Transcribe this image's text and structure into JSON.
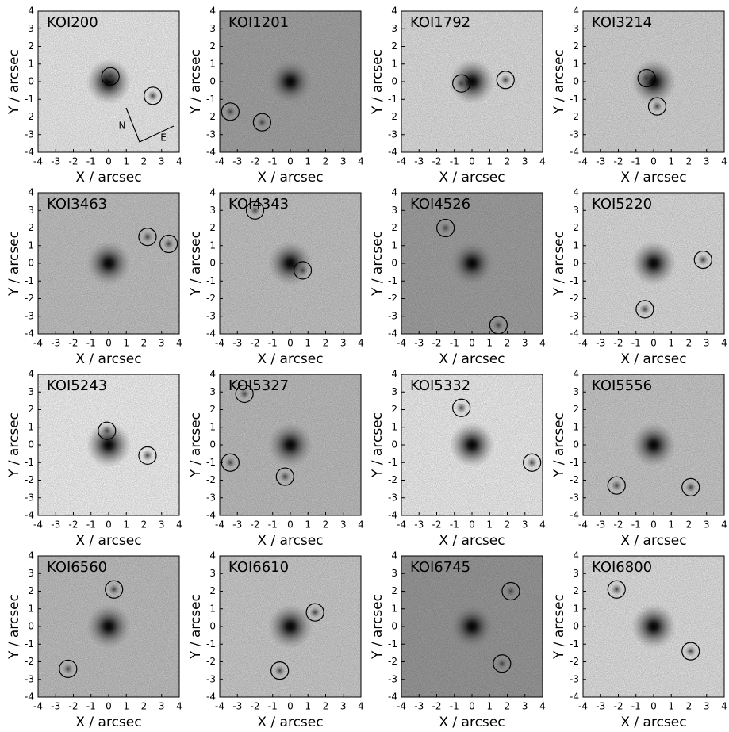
{
  "chart_data": [
    {
      "type": "image",
      "title": "KOI200",
      "xlabel": "X / arcsec",
      "ylabel": "Y / arcsec",
      "xlim": [
        -4,
        4
      ],
      "ylim": [
        -4,
        4
      ],
      "xticks": [
        -4,
        -3,
        -2,
        -1,
        0,
        1,
        2,
        3,
        4
      ],
      "yticks": [
        -4,
        -3,
        -2,
        -1,
        0,
        1,
        2,
        3,
        4
      ],
      "background": "#f4f4f4",
      "x": [
        0.1,
        2.5
      ],
      "y": [
        0.3,
        -0.8
      ],
      "annotations": [
        "N",
        "E"
      ]
    },
    {
      "type": "image",
      "title": "KOI1201",
      "xlabel": "X / arcsec",
      "ylabel": "Y / arcsec",
      "xlim": [
        -4,
        4
      ],
      "ylim": [
        -4,
        4
      ],
      "xticks": [
        -4,
        -3,
        -2,
        -1,
        0,
        1,
        2,
        3,
        4
      ],
      "yticks": [
        -4,
        -3,
        -2,
        -1,
        0,
        1,
        2,
        3,
        4
      ],
      "background": "#a9a9a9",
      "x": [
        -3.4,
        -1.6
      ],
      "y": [
        -1.7,
        -2.3
      ]
    },
    {
      "type": "image",
      "title": "KOI1792",
      "xlabel": "X / arcsec",
      "ylabel": "Y / arcsec",
      "xlim": [
        -4,
        4
      ],
      "ylim": [
        -4,
        4
      ],
      "xticks": [
        -4,
        -3,
        -2,
        -1,
        0,
        1,
        2,
        3,
        4
      ],
      "yticks": [
        -4,
        -3,
        -2,
        -1,
        0,
        1,
        2,
        3,
        4
      ],
      "background": "#e6e6e6",
      "x": [
        -0.6,
        1.9
      ],
      "y": [
        -0.1,
        0.1
      ]
    },
    {
      "type": "image",
      "title": "KOI3214",
      "xlabel": "X / arcsec",
      "ylabel": "Y / arcsec",
      "xlim": [
        -4,
        4
      ],
      "ylim": [
        -4,
        4
      ],
      "xticks": [
        -4,
        -3,
        -2,
        -1,
        0,
        1,
        2,
        3,
        4
      ],
      "yticks": [
        -4,
        -3,
        -2,
        -1,
        0,
        1,
        2,
        3,
        4
      ],
      "background": "#dcdcdc",
      "x": [
        -0.4,
        0.2
      ],
      "y": [
        0.2,
        -1.4
      ]
    },
    {
      "type": "image",
      "title": "KOI3463",
      "xlabel": "X / arcsec",
      "ylabel": "Y / arcsec",
      "xlim": [
        -4,
        4
      ],
      "ylim": [
        -4,
        4
      ],
      "xticks": [
        -4,
        -3,
        -2,
        -1,
        0,
        1,
        2,
        3,
        4
      ],
      "yticks": [
        -4,
        -3,
        -2,
        -1,
        0,
        1,
        2,
        3,
        4
      ],
      "background": "#c8c8c8",
      "x": [
        2.2,
        3.4
      ],
      "y": [
        1.5,
        1.1
      ]
    },
    {
      "type": "image",
      "title": "KOI4343",
      "xlabel": "X / arcsec",
      "ylabel": "Y / arcsec",
      "xlim": [
        -4,
        4
      ],
      "ylim": [
        -4,
        4
      ],
      "xticks": [
        -4,
        -3,
        -2,
        -1,
        0,
        1,
        2,
        3,
        4
      ],
      "yticks": [
        -4,
        -3,
        -2,
        -1,
        0,
        1,
        2,
        3,
        4
      ],
      "background": "#cbcbcb",
      "x": [
        -2.0,
        0.7
      ],
      "y": [
        3.0,
        -0.4
      ]
    },
    {
      "type": "image",
      "title": "KOI4526",
      "xlabel": "X / arcsec",
      "ylabel": "Y / arcsec",
      "xlim": [
        -4,
        4
      ],
      "ylim": [
        -4,
        4
      ],
      "xticks": [
        -4,
        -3,
        -2,
        -1,
        0,
        1,
        2,
        3,
        4
      ],
      "yticks": [
        -4,
        -3,
        -2,
        -1,
        0,
        1,
        2,
        3,
        4
      ],
      "background": "#a6a6a6",
      "x": [
        -1.5,
        1.5
      ],
      "y": [
        2.0,
        -3.5
      ]
    },
    {
      "type": "image",
      "title": "KOI5220",
      "xlabel": "X / arcsec",
      "ylabel": "Y / arcsec",
      "xlim": [
        -4,
        4
      ],
      "ylim": [
        -4,
        4
      ],
      "xticks": [
        -4,
        -3,
        -2,
        -1,
        0,
        1,
        2,
        3,
        4
      ],
      "yticks": [
        -4,
        -3,
        -2,
        -1,
        0,
        1,
        2,
        3,
        4
      ],
      "background": "#e4e4e4",
      "x": [
        2.8,
        -0.5
      ],
      "y": [
        0.2,
        -2.6
      ]
    },
    {
      "type": "image",
      "title": "KOI5243",
      "xlabel": "X / arcsec",
      "ylabel": "Y / arcsec",
      "xlim": [
        -4,
        4
      ],
      "ylim": [
        -4,
        4
      ],
      "xticks": [
        -4,
        -3,
        -2,
        -1,
        0,
        1,
        2,
        3,
        4
      ],
      "yticks": [
        -4,
        -3,
        -2,
        -1,
        0,
        1,
        2,
        3,
        4
      ],
      "background": "#fafafa",
      "x": [
        -0.1,
        2.2
      ],
      "y": [
        0.8,
        -0.6
      ]
    },
    {
      "type": "image",
      "title": "KOI5327",
      "xlabel": "X / arcsec",
      "ylabel": "Y / arcsec",
      "xlim": [
        -4,
        4
      ],
      "ylim": [
        -4,
        4
      ],
      "xticks": [
        -4,
        -3,
        -2,
        -1,
        0,
        1,
        2,
        3,
        4
      ],
      "yticks": [
        -4,
        -3,
        -2,
        -1,
        0,
        1,
        2,
        3,
        4
      ],
      "background": "#c4c4c4",
      "x": [
        -2.6,
        -3.4,
        -0.3
      ],
      "y": [
        2.9,
        -1.0,
        -1.8
      ]
    },
    {
      "type": "image",
      "title": "KOI5332",
      "xlabel": "X / arcsec",
      "ylabel": "Y / arcsec",
      "xlim": [
        -4,
        4
      ],
      "ylim": [
        -4,
        4
      ],
      "xticks": [
        -4,
        -3,
        -2,
        -1,
        0,
        1,
        2,
        3,
        4
      ],
      "yticks": [
        -4,
        -3,
        -2,
        -1,
        0,
        1,
        2,
        3,
        4
      ],
      "background": "#f6f6f6",
      "x": [
        -0.6,
        3.4
      ],
      "y": [
        2.1,
        -1.0
      ]
    },
    {
      "type": "image",
      "title": "KOI5556",
      "xlabel": "X / arcsec",
      "ylabel": "Y / arcsec",
      "xlim": [
        -4,
        4
      ],
      "ylim": [
        -4,
        4
      ],
      "xticks": [
        -4,
        -3,
        -2,
        -1,
        0,
        1,
        2,
        3,
        4
      ],
      "yticks": [
        -4,
        -3,
        -2,
        -1,
        0,
        1,
        2,
        3,
        4
      ],
      "background": "#cfcfcf",
      "x": [
        -2.1,
        2.1
      ],
      "y": [
        -2.3,
        -2.4
      ]
    },
    {
      "type": "image",
      "title": "KOI6560",
      "xlabel": "X / arcsec",
      "ylabel": "Y / arcsec",
      "xlim": [
        -4,
        4
      ],
      "ylim": [
        -4,
        4
      ],
      "xticks": [
        -4,
        -3,
        -2,
        -1,
        0,
        1,
        2,
        3,
        4
      ],
      "yticks": [
        -4,
        -3,
        -2,
        -1,
        0,
        1,
        2,
        3,
        4
      ],
      "background": "#c6c6c6",
      "x": [
        0.3,
        -2.3
      ],
      "y": [
        2.1,
        -2.4
      ]
    },
    {
      "type": "image",
      "title": "KOI6610",
      "xlabel": "X / arcsec",
      "ylabel": "Y / arcsec",
      "xlim": [
        -4,
        4
      ],
      "ylim": [
        -4,
        4
      ],
      "xticks": [
        -4,
        -3,
        -2,
        -1,
        0,
        1,
        2,
        3,
        4
      ],
      "yticks": [
        -4,
        -3,
        -2,
        -1,
        0,
        1,
        2,
        3,
        4
      ],
      "background": "#d2d2d2",
      "x": [
        1.4,
        -0.6
      ],
      "y": [
        0.8,
        -2.5
      ]
    },
    {
      "type": "image",
      "title": "KOI6745",
      "xlabel": "X / arcsec",
      "ylabel": "Y / arcsec",
      "xlim": [
        -4,
        4
      ],
      "ylim": [
        -4,
        4
      ],
      "xticks": [
        -4,
        -3,
        -2,
        -1,
        0,
        1,
        2,
        3,
        4
      ],
      "yticks": [
        -4,
        -3,
        -2,
        -1,
        0,
        1,
        2,
        3,
        4
      ],
      "background": "#9e9e9e",
      "x": [
        2.2,
        1.7
      ],
      "y": [
        2.0,
        -2.1
      ]
    },
    {
      "type": "image",
      "title": "KOI6800",
      "xlabel": "X / arcsec",
      "ylabel": "Y / arcsec",
      "xlim": [
        -4,
        4
      ],
      "ylim": [
        -4,
        4
      ],
      "xticks": [
        -4,
        -3,
        -2,
        -1,
        0,
        1,
        2,
        3,
        4
      ],
      "yticks": [
        -4,
        -3,
        -2,
        -1,
        0,
        1,
        2,
        3,
        4
      ],
      "background": "#e8e8e8",
      "x": [
        -2.1,
        2.1
      ],
      "y": [
        2.1,
        -1.4
      ]
    }
  ]
}
